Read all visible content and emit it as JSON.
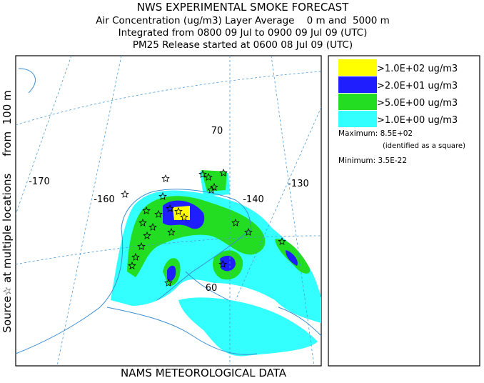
{
  "header": {
    "title": "NWS EXPERIMENTAL SMOKE FORECAST",
    "lines": [
      "Air Concentration (ug/m3) Layer Average    0 m and  5000 m",
      "Integrated from 0800 09 Jul to 0900 09 Jul 09 (UTC)",
      "PM25 Release started at 0600 08 Jul 09 (UTC)"
    ]
  },
  "side_label": "Source☆ at multiple locations     from  100 m",
  "footer": "NAMS METEOROLOGICAL DATA",
  "map": {
    "labels": [
      "-170",
      "-160",
      "-140",
      "-130",
      "70",
      "60"
    ]
  },
  "legend": {
    "entries": [
      {
        "label": ">1.0E+02 ug/m3",
        "color": "#ffff00"
      },
      {
        "label": ">2.0E+01 ug/m3",
        "color": "#1e1eff"
      },
      {
        "label": ">5.0E+00 ug/m3",
        "color": "#22dd22"
      },
      {
        "label": ">1.0E+00 ug/m3",
        "color": "#33ffff"
      }
    ],
    "maximum": "Maximum: 8.5E+02",
    "maximum_note": "(identified as a square)",
    "minimum": "Minimum: 3.5E-22"
  }
}
